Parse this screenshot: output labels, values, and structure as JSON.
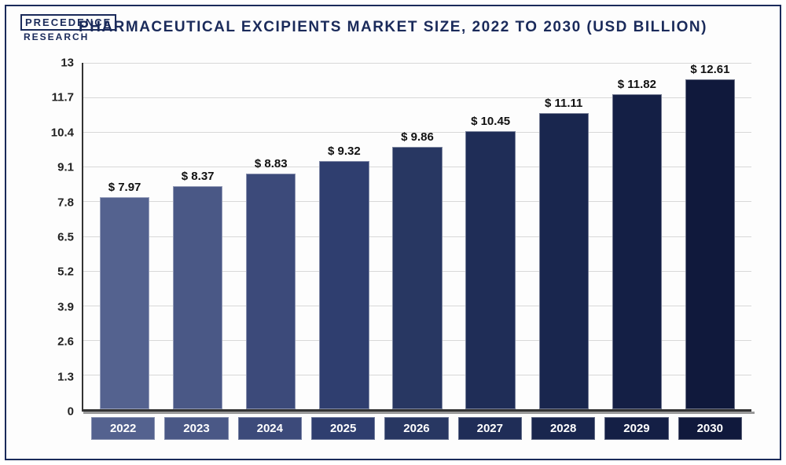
{
  "logo": {
    "line1": "PRECEDENCE",
    "line2": "RESEARCH"
  },
  "title": "PHARMACEUTICAL EXCIPIENTS MARKET SIZE, 2022 TO 2030 (USD BILLION)",
  "chart": {
    "type": "bar",
    "ylim": [
      0,
      13
    ],
    "yticks": [
      0,
      1.3,
      2.6,
      3.9,
      5.2,
      6.5,
      7.8,
      9.1,
      10.4,
      11.7,
      13
    ],
    "ytick_labels": [
      "0",
      "1.3",
      "2.6",
      "3.9",
      "5.2",
      "6.5",
      "7.8",
      "9.1",
      "10.4",
      "11.7",
      "13"
    ],
    "categories": [
      "2022",
      "2023",
      "2024",
      "2025",
      "2026",
      "2027",
      "2028",
      "2029",
      "2030"
    ],
    "values": [
      7.97,
      8.37,
      8.83,
      9.32,
      9.86,
      10.45,
      11.11,
      11.82,
      12.61
    ],
    "value_labels": [
      "$ 7.97",
      "$ 8.37",
      "$ 8.83",
      "$ 9.32",
      "$ 9.86",
      "$ 10.45",
      "$ 11.11",
      "$ 11.82",
      "$ 12.61"
    ],
    "bar_colors": [
      "#54628f",
      "#4a5886",
      "#3c4a7a",
      "#2f3e6f",
      "#283762",
      "#1f2d57",
      "#19264e",
      "#141f45",
      "#10193c"
    ],
    "grid_color": "#d8d8d8",
    "axis_color": "#333333",
    "background_color": "#fdfdfd",
    "frame_border_color": "#1a2a5a",
    "title_color": "#1a2a5a",
    "title_fontsize": 19,
    "label_fontsize": 15,
    "bar_width": 0.78
  }
}
